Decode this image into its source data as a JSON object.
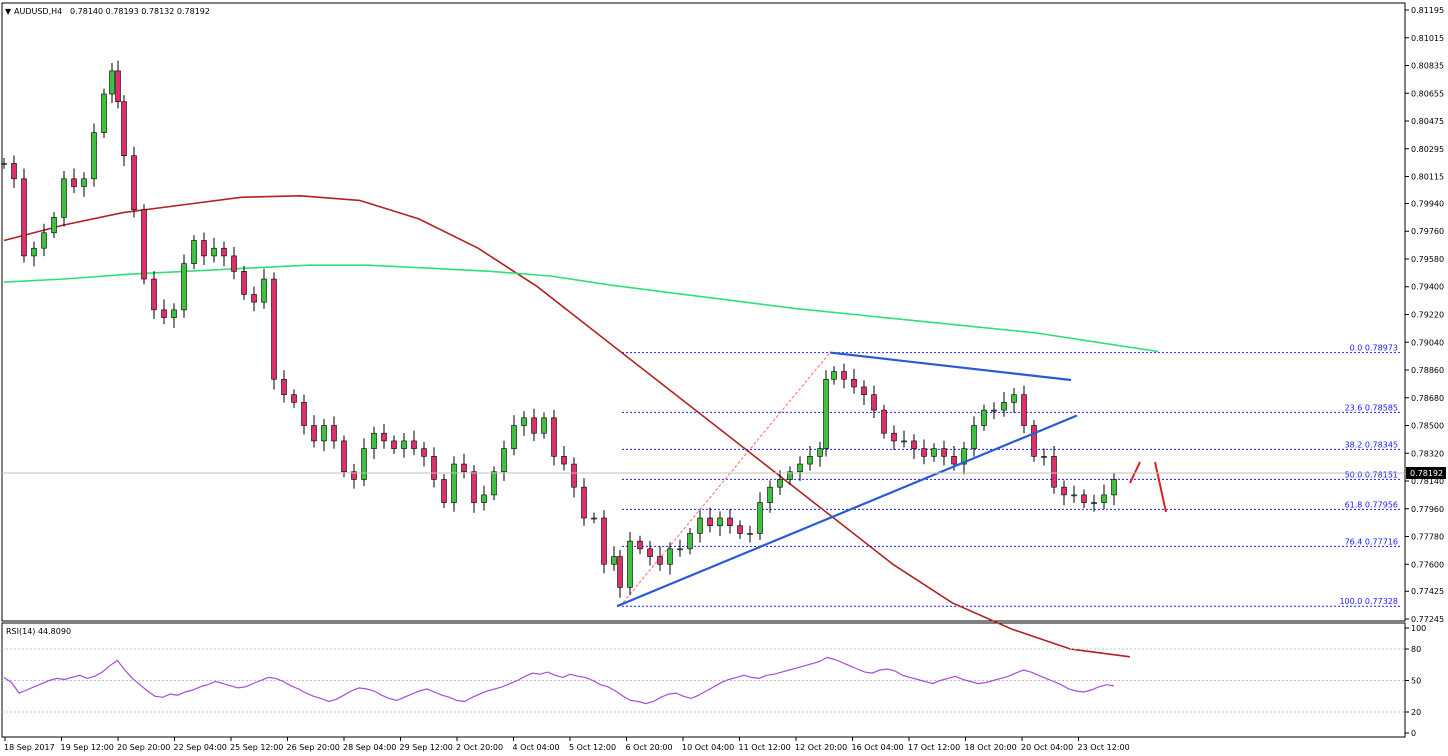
{
  "header": {
    "symbol": "AUDUSD,H4",
    "ohlc": "0.78140 0.78193 0.78132 0.78192"
  },
  "rsi": {
    "label": "RSI(14) 44.8090",
    "levels": [
      100,
      80,
      50,
      20,
      0
    ],
    "level_labels": [
      "100",
      "80",
      "50",
      "20",
      "0"
    ],
    "color": "#a64dd8",
    "values": [
      53,
      48,
      38,
      41,
      44,
      47,
      50,
      52,
      51,
      53,
      55,
      52,
      54,
      58,
      64,
      69,
      60,
      52,
      46,
      40,
      35,
      34,
      37,
      36,
      39,
      41,
      44,
      46,
      49,
      47,
      45,
      43,
      44,
      47,
      50,
      53,
      52,
      49,
      45,
      42,
      38,
      35,
      33,
      30,
      32,
      36,
      40,
      43,
      42,
      40,
      36,
      33,
      31,
      34,
      37,
      40,
      42,
      39,
      36,
      34,
      31,
      30,
      34,
      37,
      40,
      42,
      44,
      47,
      50,
      54,
      57,
      56,
      58,
      55,
      53,
      56,
      54,
      53,
      50,
      46,
      44,
      40,
      35,
      31,
      30,
      28,
      30,
      34,
      37,
      38,
      35,
      33,
      36,
      40,
      44,
      48,
      51,
      53,
      55,
      53,
      52,
      55,
      56,
      58,
      60,
      62,
      64,
      66,
      68,
      72,
      70,
      67,
      64,
      61,
      58,
      57,
      60,
      61,
      59,
      55,
      53,
      51,
      49,
      47,
      50,
      52,
      54,
      51,
      49,
      47,
      48,
      50,
      52,
      54,
      57,
      60,
      58,
      55,
      52,
      49,
      46,
      42,
      40,
      39,
      41,
      44,
      46,
      45
    ]
  },
  "price_axis": {
    "labels": [
      "0.81195",
      "0.81015",
      "0.80835",
      "0.80655",
      "0.80475",
      "0.80295",
      "0.80115",
      "0.79940",
      "0.79760",
      "0.79580",
      "0.79400",
      "0.79220",
      "0.79040",
      "0.78860",
      "0.78680",
      "0.78500",
      "0.78320",
      "0.78140",
      "0.77960",
      "0.77780",
      "0.77600",
      "0.77425",
      "0.77245"
    ],
    "current": "0.78192"
  },
  "time_axis": {
    "labels": [
      "18 Sep 2017",
      "19 Sep 12:00",
      "20 Sep 20:00",
      "22 Sep 04:00",
      "25 Sep 12:00",
      "26 Sep 20:00",
      "28 Sep 04:00",
      "29 Sep 12:00",
      "2 Oct 20:00",
      "4 Oct 04:00",
      "5 Oct 12:00",
      "6 Oct 20:00",
      "10 Oct 04:00",
      "11 Oct 12:00",
      "12 Oct 20:00",
      "16 Oct 04:00",
      "17 Oct 12:00",
      "18 Oct 20:00",
      "20 Oct 04:00",
      "23 Oct 12:00"
    ]
  },
  "fibonacci": {
    "levels": [
      {
        "label": "0.0 0.78973",
        "price": 0.78973
      },
      {
        "label": "23.6 0.78585",
        "price": 0.78585
      },
      {
        "label": "38.2 0.78345",
        "price": 0.78345
      },
      {
        "label": "50.0 0.78151",
        "price": 0.78151
      },
      {
        "label": "61.8 0.77956",
        "price": 0.77956
      },
      {
        "label": "76.4 0.77716",
        "price": 0.77716
      },
      {
        "label": "100.0 0.77328",
        "price": 0.77328
      }
    ],
    "color": "#1a1aff"
  },
  "colors": {
    "bull": "#3ec23e",
    "bear": "#e0306a",
    "ma_red": "#b22222",
    "ma_green": "#2ee07a",
    "trendline": "#2a5bd7",
    "arrow": "#e02020",
    "fib_diag": "#ff6b6b"
  },
  "chart_data": [
    {
      "type": "candlestick",
      "title": "AUDUSD,H4",
      "x": "time",
      "ylim": [
        0.77245,
        0.81195
      ],
      "moving_averages": [
        {
          "color": "red",
          "points": [
            0.797,
            0.798,
            0.7988,
            0.7993,
            0.7998,
            0.7999,
            0.7996,
            0.7984,
            0.7965,
            0.794,
            0.791,
            0.788,
            0.785,
            0.782,
            0.779,
            0.776,
            0.7735,
            0.7718,
            0.7705,
            0.77
          ]
        },
        {
          "color": "green",
          "points": [
            0.7943,
            0.7945,
            0.7948,
            0.795,
            0.7952,
            0.7954,
            0.7954,
            0.7952,
            0.795,
            0.7947,
            0.7941,
            0.7936,
            0.7931,
            0.7926,
            0.7922,
            0.7918,
            0.7914,
            0.791,
            0.7904,
            0.7898
          ]
        }
      ]
    },
    {
      "type": "line",
      "title": "RSI(14) 44.8090",
      "ylim": [
        0,
        100
      ]
    }
  ]
}
